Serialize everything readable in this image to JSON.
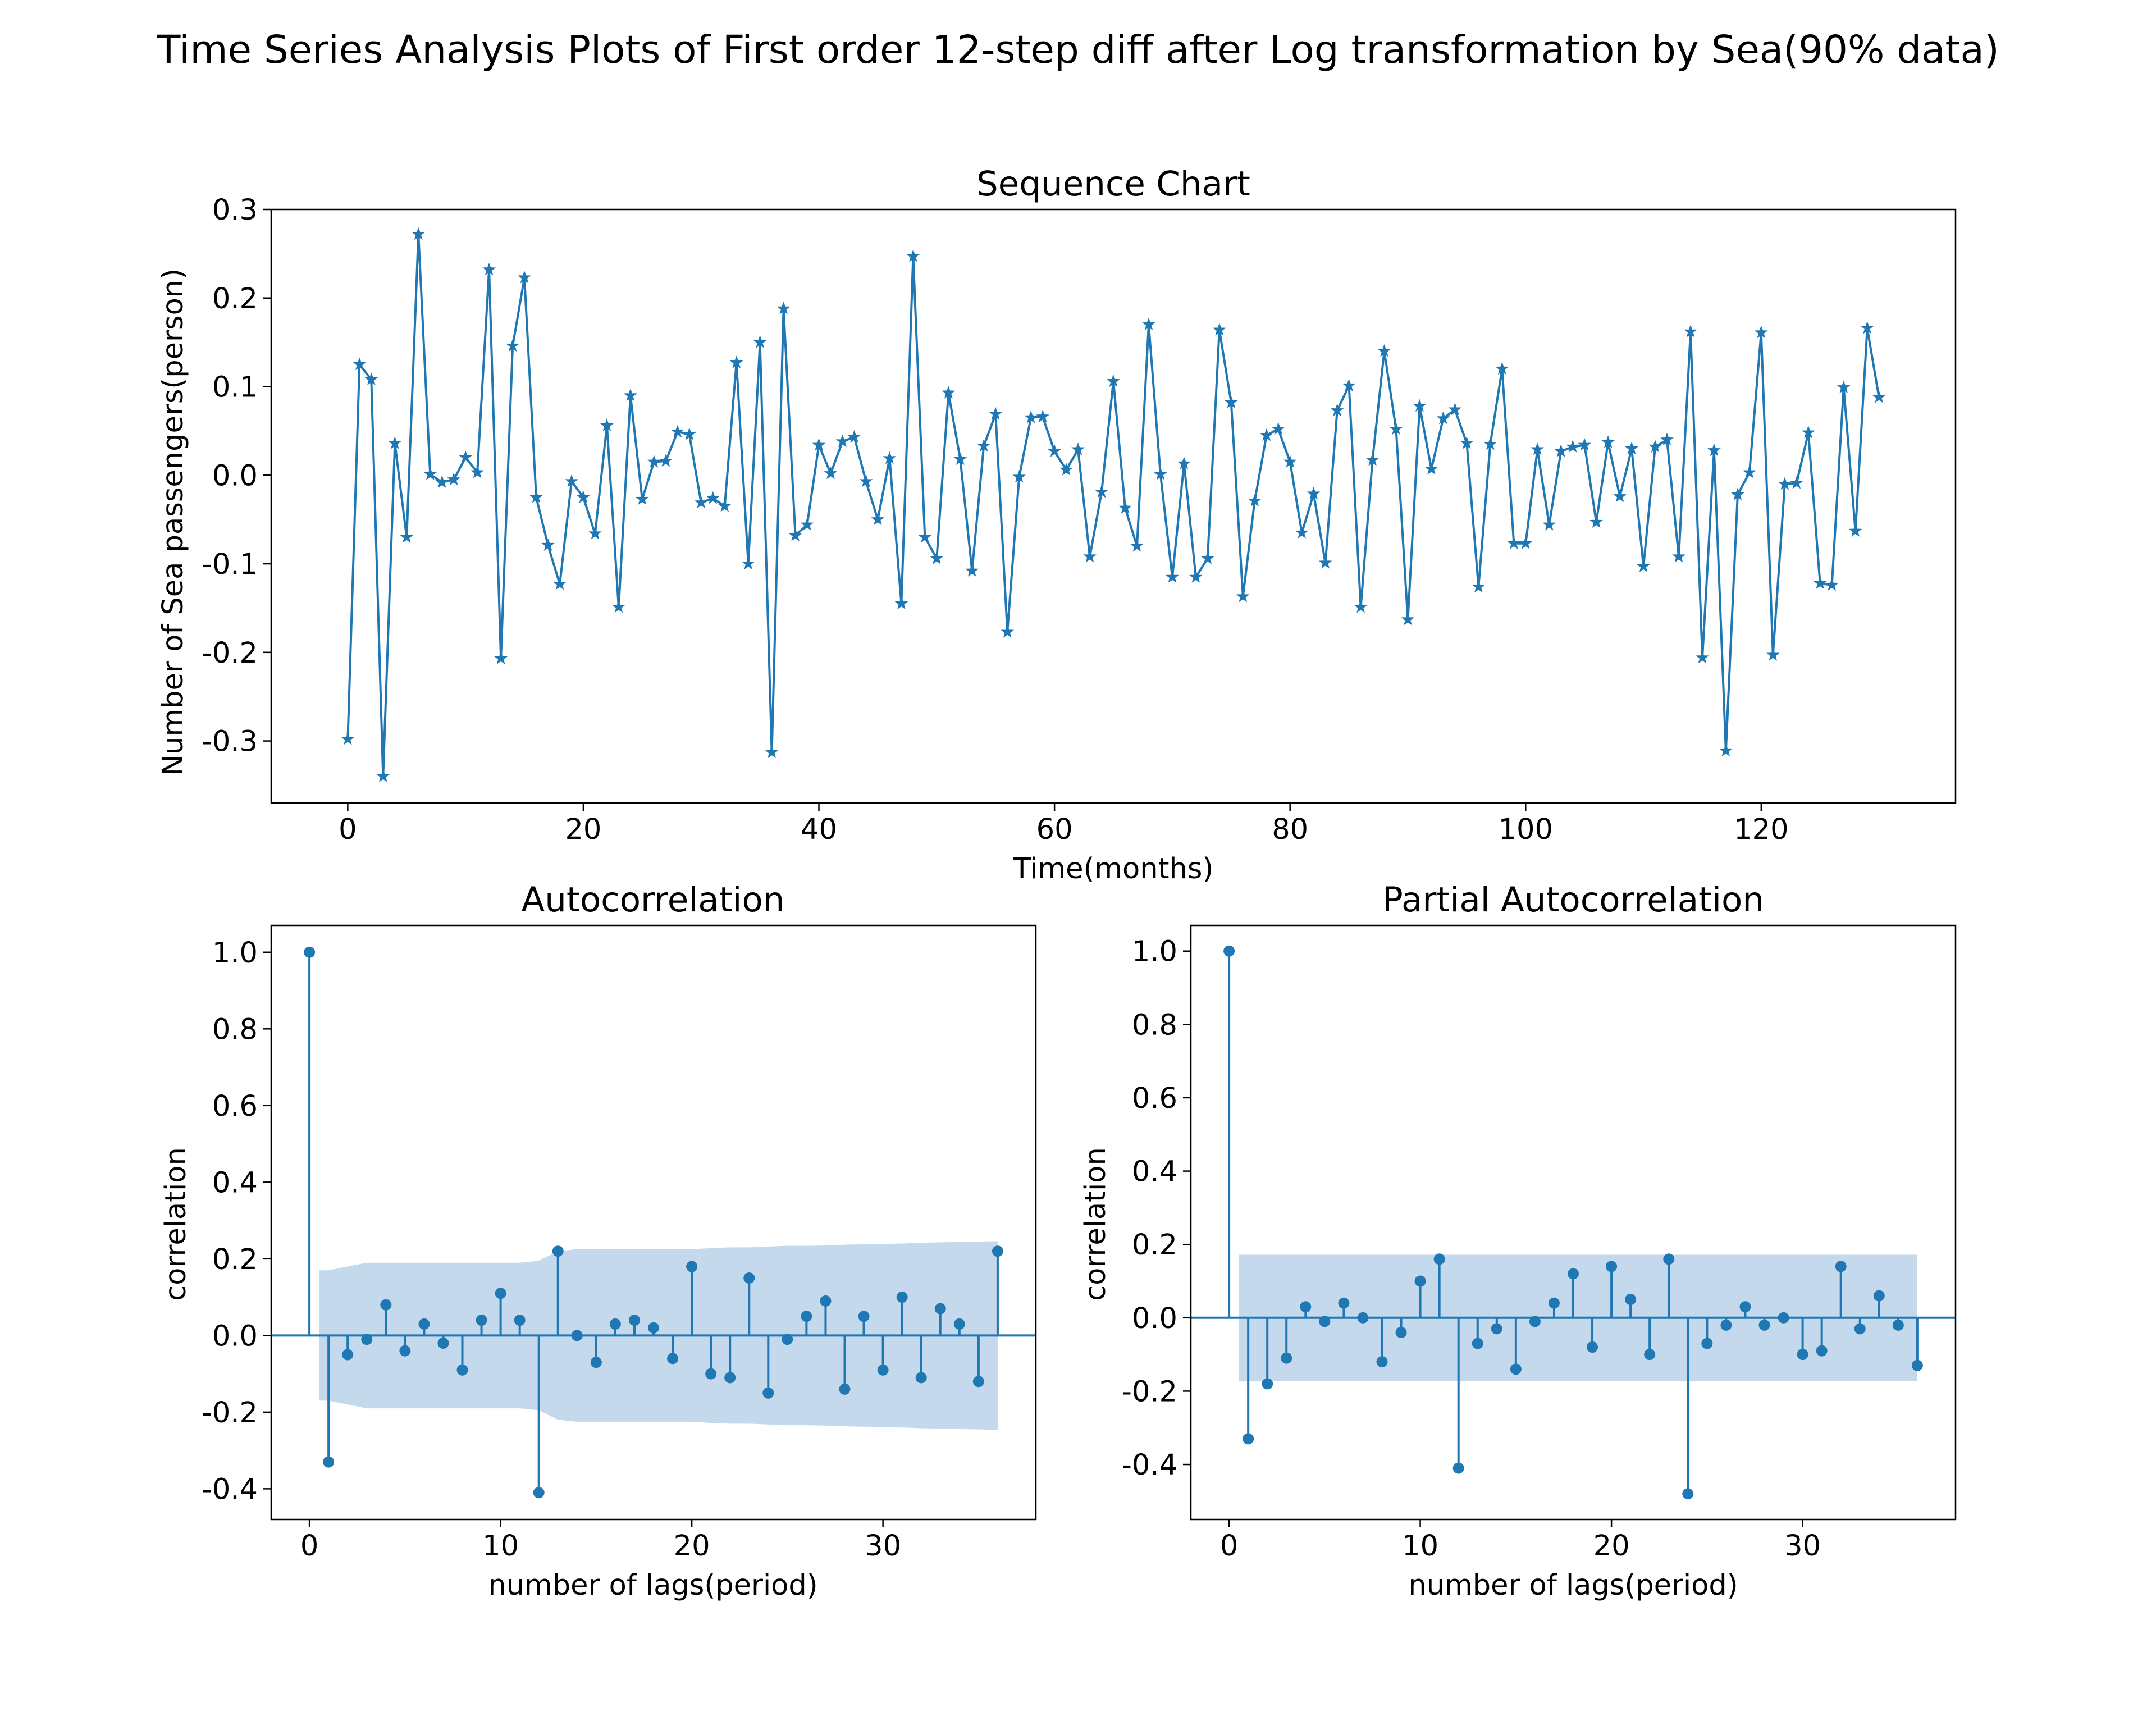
{
  "figure": {
    "title": "Time Series Analysis Plots of First order 12-step diff after Log transformation by Sea(90% data)"
  },
  "colors": {
    "series": "#1f77b4",
    "band": "#c5d9ec",
    "axis": "#000000"
  },
  "chart_data": [
    {
      "type": "line",
      "marker": "star",
      "title": "Sequence Chart",
      "xlabel": "Time(months)",
      "ylabel": "Number of Sea passengers(person)",
      "xlim": [
        -6.5,
        136.5
      ],
      "ylim": [
        -0.37,
        0.3
      ],
      "xticks": [
        0,
        20,
        40,
        60,
        80,
        100,
        120
      ],
      "yticks": [
        -0.3,
        -0.2,
        -0.1,
        0.0,
        0.1,
        0.2,
        0.3
      ],
      "ytick_labels": [
        "-0.3",
        "-0.2",
        "-0.1",
        "0.0",
        "0.1",
        "0.2",
        "0.3"
      ],
      "values": [
        -0.298,
        0.125,
        0.108,
        -0.34,
        0.036,
        -0.07,
        0.272,
        0.001,
        -0.008,
        -0.005,
        0.02,
        0.003,
        0.232,
        -0.207,
        0.146,
        0.223,
        -0.025,
        -0.079,
        -0.123,
        -0.007,
        -0.025,
        -0.066,
        0.056,
        -0.149,
        0.09,
        -0.027,
        0.015,
        0.016,
        0.049,
        0.046,
        -0.031,
        -0.026,
        -0.035,
        0.127,
        -0.1,
        0.15,
        -0.313,
        0.188,
        -0.068,
        -0.056,
        0.034,
        0.002,
        0.038,
        0.043,
        -0.007,
        -0.05,
        0.019,
        -0.145,
        0.247,
        -0.07,
        -0.094,
        0.093,
        0.018,
        -0.108,
        0.033,
        0.069,
        -0.177,
        -0.002,
        0.065,
        0.066,
        0.027,
        0.006,
        0.029,
        -0.092,
        -0.019,
        0.106,
        -0.037,
        -0.08,
        0.17,
        0.001,
        -0.115,
        0.013,
        -0.115,
        -0.094,
        0.164,
        0.082,
        -0.137,
        -0.029,
        0.045,
        0.052,
        0.015,
        -0.065,
        -0.021,
        -0.099,
        0.073,
        0.101,
        -0.149,
        0.017,
        0.14,
        0.052,
        -0.163,
        0.078,
        0.007,
        0.064,
        0.074,
        0.036,
        -0.126,
        0.035,
        0.12,
        -0.077,
        -0.077,
        0.029,
        -0.056,
        0.027,
        0.032,
        0.034,
        -0.053,
        0.037,
        -0.024,
        0.03,
        -0.103,
        0.032,
        0.04,
        -0.092,
        0.162,
        -0.206,
        0.028,
        -0.311,
        -0.022,
        0.003,
        0.161,
        -0.203,
        -0.01,
        -0.009,
        0.048,
        -0.122,
        -0.124,
        0.099,
        -0.063,
        0.166,
        0.088
      ]
    },
    {
      "type": "stem",
      "title": "Autocorrelation",
      "xlabel": "number of lags(period)",
      "ylabel": "correlation",
      "xlim": [
        -2,
        38
      ],
      "ylim": [
        -0.48,
        1.07
      ],
      "xticks": [
        0,
        10,
        20,
        30
      ],
      "yticks": [
        -0.4,
        -0.2,
        0.0,
        0.2,
        0.4,
        0.6,
        0.8,
        1.0
      ],
      "ytick_labels": [
        "-0.4",
        "-0.2",
        "0.0",
        "0.2",
        "0.4",
        "0.6",
        "0.8",
        "1.0"
      ],
      "values": [
        1.0,
        -0.33,
        -0.05,
        -0.01,
        0.08,
        -0.04,
        0.03,
        -0.02,
        -0.09,
        0.04,
        0.11,
        0.04,
        -0.41,
        0.22,
        0.0,
        -0.07,
        0.03,
        0.04,
        0.02,
        -0.06,
        0.18,
        -0.1,
        -0.11,
        0.15,
        -0.15,
        -0.01,
        0.05,
        0.09,
        -0.14,
        0.05,
        -0.09,
        0.1,
        -0.11,
        0.07,
        0.03,
        -0.12,
        0.22
      ],
      "confint": [
        0.0,
        0.17,
        0.18,
        0.19,
        0.19,
        0.19,
        0.19,
        0.19,
        0.19,
        0.19,
        0.19,
        0.19,
        0.195,
        0.22,
        0.225,
        0.225,
        0.225,
        0.225,
        0.225,
        0.225,
        0.225,
        0.228,
        0.23,
        0.23,
        0.232,
        0.234,
        0.234,
        0.235,
        0.237,
        0.238,
        0.239,
        0.24,
        0.242,
        0.243,
        0.244,
        0.245,
        0.246
      ]
    },
    {
      "type": "stem",
      "title": "Partial Autocorrelation",
      "xlabel": "number of lags(period)",
      "ylabel": "correlation",
      "xlim": [
        -2,
        38
      ],
      "ylim": [
        -0.55,
        1.07
      ],
      "xticks": [
        0,
        10,
        20,
        30
      ],
      "yticks": [
        -0.4,
        -0.2,
        0.0,
        0.2,
        0.4,
        0.6,
        0.8,
        1.0
      ],
      "ytick_labels": [
        "-0.4",
        "-0.2",
        "0.0",
        "0.2",
        "0.4",
        "0.6",
        "0.8",
        "1.0"
      ],
      "values": [
        1.0,
        -0.33,
        -0.18,
        -0.11,
        0.03,
        -0.01,
        0.04,
        0.0,
        -0.12,
        -0.04,
        0.1,
        0.16,
        -0.41,
        -0.07,
        -0.03,
        -0.14,
        -0.01,
        0.04,
        0.12,
        -0.08,
        0.14,
        0.05,
        -0.1,
        0.16,
        -0.48,
        -0.07,
        -0.02,
        0.03,
        -0.02,
        0.0,
        -0.1,
        -0.09,
        0.14,
        -0.03,
        0.06,
        -0.02,
        -0.13
      ],
      "confint": [
        0.0,
        0.172,
        0.172,
        0.172,
        0.172,
        0.172,
        0.172,
        0.172,
        0.172,
        0.172,
        0.172,
        0.172,
        0.172,
        0.172,
        0.172,
        0.172,
        0.172,
        0.172,
        0.172,
        0.172,
        0.172,
        0.172,
        0.172,
        0.172,
        0.172,
        0.172,
        0.172,
        0.172,
        0.172,
        0.172,
        0.172,
        0.172,
        0.172,
        0.172,
        0.172,
        0.172,
        0.172
      ]
    }
  ]
}
